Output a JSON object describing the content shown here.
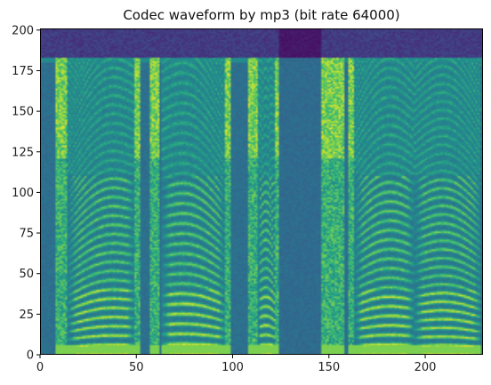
{
  "chart_data": {
    "type": "heatmap",
    "title": "Codec waveform by mp3 (bit rate 64000)",
    "xlabel": "",
    "ylabel": "",
    "xlim": [
      0,
      230
    ],
    "ylim": [
      0,
      201
    ],
    "x_ticks": [
      0,
      50,
      100,
      150,
      200
    ],
    "y_ticks": [
      0,
      25,
      50,
      75,
      100,
      125,
      150,
      175,
      200
    ],
    "x_tick_labels": [
      "0",
      "50",
      "100",
      "150",
      "200"
    ],
    "y_tick_labels": [
      "0",
      "25",
      "50",
      "75",
      "100",
      "125",
      "150",
      "175",
      "200"
    ],
    "colormap": "viridis",
    "grid": false,
    "bit_rate": 64000,
    "cutoff_bin": 183,
    "voiced_segments": [
      {
        "start": 14,
        "end": 49,
        "f0_start": 4.5,
        "f0_end": 5.5
      },
      {
        "start": 63,
        "end": 96,
        "f0_start": 6.0,
        "f0_end": 5.0
      },
      {
        "start": 113,
        "end": 122,
        "f0_start": 5.5,
        "f0_end": 5.0
      },
      {
        "start": 163,
        "end": 194,
        "f0_start": 5.0,
        "f0_end": 5.5
      },
      {
        "start": 194,
        "end": 229,
        "f0_start": 5.0,
        "f0_end": 4.5
      }
    ],
    "silent_segments": [
      {
        "start": 124,
        "end": 146
      }
    ]
  }
}
